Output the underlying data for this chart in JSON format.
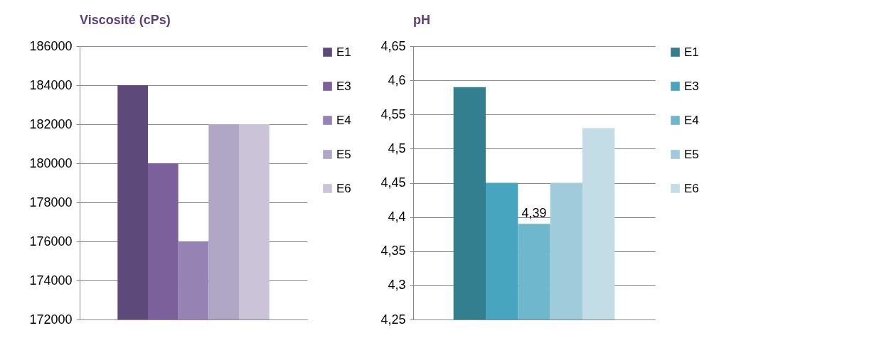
{
  "chart_data": [
    {
      "type": "bar",
      "title": "Viscosité (cPs)",
      "categories": [
        null
      ],
      "series": [
        {
          "name": "E1",
          "color": "#5e4a7a",
          "values": [
            184000
          ]
        },
        {
          "name": "E3",
          "color": "#7b609c",
          "values": [
            180000
          ]
        },
        {
          "name": "E4",
          "color": "#9783b3",
          "values": [
            176000
          ]
        },
        {
          "name": "E5",
          "color": "#b0a6c6",
          "values": [
            182000
          ]
        },
        {
          "name": "E6",
          "color": "#cbc3d8",
          "values": [
            182000
          ]
        }
      ],
      "ylim": [
        172000,
        186000
      ],
      "yticks": [
        172000,
        174000,
        176000,
        178000,
        180000,
        182000,
        184000,
        186000
      ],
      "grid": "y",
      "legend": "right",
      "tick_labels": "y"
    },
    {
      "type": "bar",
      "title": "pH",
      "categories": [
        null
      ],
      "series": [
        {
          "name": "E1",
          "color": "#347f8f",
          "values": [
            4.59
          ]
        },
        {
          "name": "E3",
          "color": "#47a5bf",
          "values": [
            4.45
          ]
        },
        {
          "name": "E4",
          "color": "#6fb7cc",
          "values": [
            4.39
          ],
          "value_labels": [
            "4,39"
          ]
        },
        {
          "name": "E5",
          "color": "#9fcbda",
          "values": [
            4.45
          ]
        },
        {
          "name": "E6",
          "color": "#c2dde6",
          "values": [
            4.53
          ]
        }
      ],
      "ylim": [
        4.25,
        4.65
      ],
      "yticks": [
        {
          "value": 4.25,
          "label": "4,25"
        },
        {
          "value": 4.3,
          "label": "4,3"
        },
        {
          "value": 4.35,
          "label": "4,35"
        },
        {
          "value": 4.4,
          "label": "4,4"
        },
        {
          "value": 4.45,
          "label": "4,45"
        },
        {
          "value": 4.5,
          "label": "4,5"
        },
        {
          "value": 4.55,
          "label": "4,55"
        },
        {
          "value": 4.6,
          "label": "4,6"
        },
        {
          "value": 4.65,
          "label": "4,65"
        }
      ],
      "grid": "y",
      "legend": "right",
      "tick_labels": "y"
    }
  ]
}
